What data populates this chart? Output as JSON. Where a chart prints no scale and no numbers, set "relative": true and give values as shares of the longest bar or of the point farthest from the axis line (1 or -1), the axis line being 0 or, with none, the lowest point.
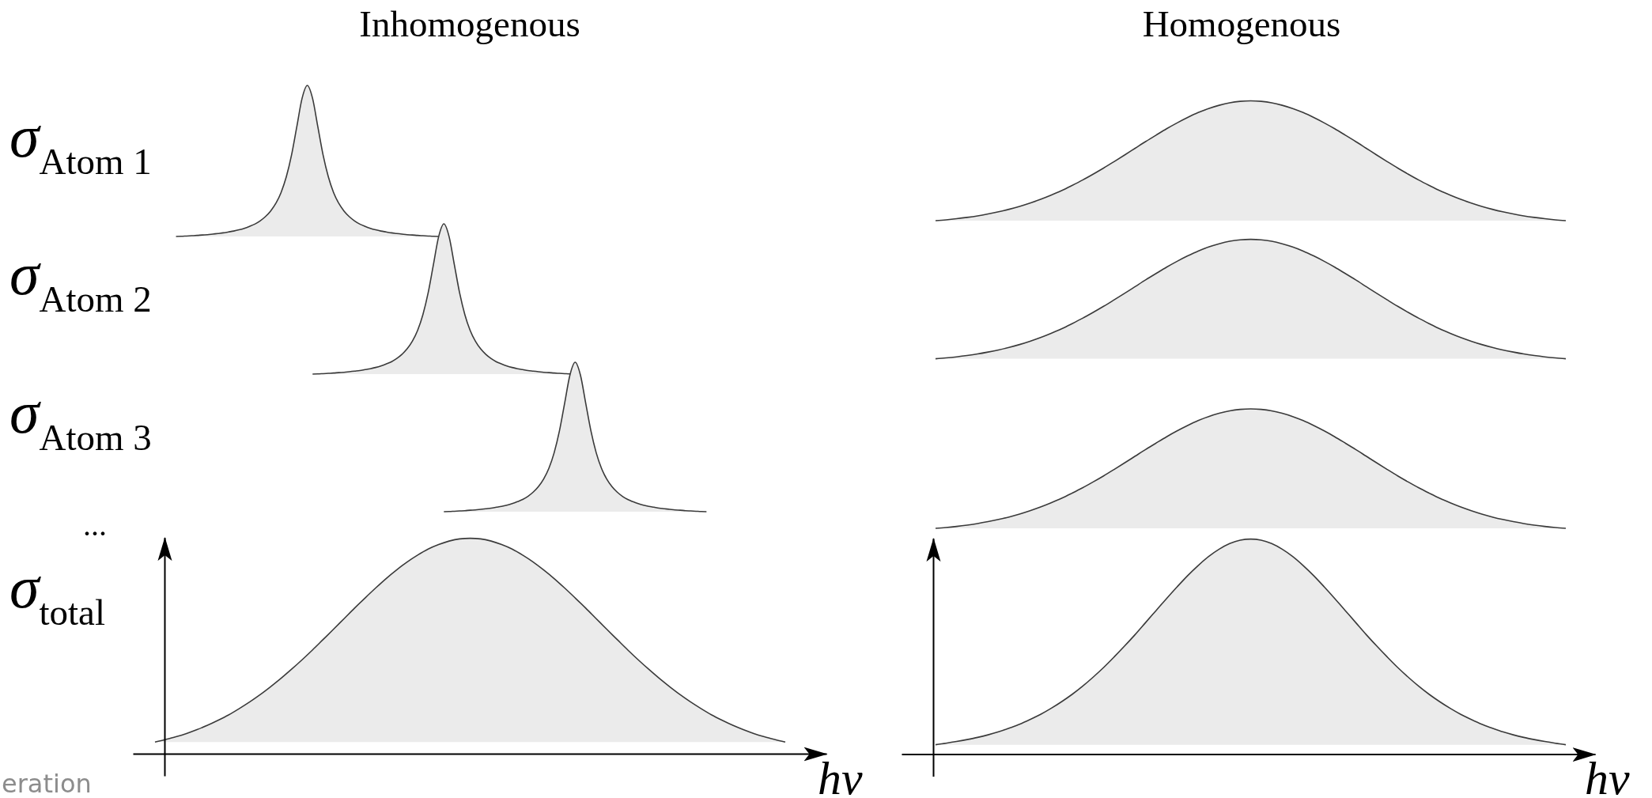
{
  "chart_data": [
    {
      "type": "area",
      "relative": true,
      "title": "Inhomogenous",
      "ylabel": "σ$_{Atom 1}$",
      "color": "#ebebeb",
      "categories": [
        null,
        null,
        null,
        null,
        null,
        null,
        null,
        null,
        null,
        null,
        null,
        null,
        null,
        null,
        null,
        null,
        null,
        null,
        null,
        null,
        null,
        null,
        null,
        null,
        null,
        null,
        null,
        null,
        null,
        null,
        null,
        null,
        null,
        null,
        null,
        null,
        null,
        null,
        null,
        null,
        null,
        null,
        null,
        null,
        null,
        null,
        null,
        null,
        null,
        null,
        null,
        null,
        null,
        null,
        null,
        null,
        null,
        null,
        null,
        null,
        null,
        null,
        null,
        null,
        null,
        null,
        null,
        null,
        null,
        null,
        null,
        null,
        null,
        null,
        null,
        null,
        null,
        null,
        null,
        null,
        null,
        null,
        null,
        null,
        null,
        null,
        null,
        null,
        null,
        null,
        null,
        null,
        null,
        null,
        null,
        null,
        null,
        null,
        null,
        null,
        null,
        null,
        null,
        null,
        null,
        null,
        null,
        null,
        null,
        null,
        null,
        null,
        null,
        null,
        null,
        null,
        null,
        null,
        null,
        null,
        null
      ],
      "values": [
        null,
        null,
        null,
        null,
        0,
        0.001,
        0.003,
        0.005,
        0.007,
        0.01,
        0.012,
        0.016,
        0.02,
        0.024,
        0.03,
        0.036,
        0.044,
        0.054,
        0.067,
        0.082,
        0.103,
        0.131,
        0.168,
        0.219,
        0.291,
        0.395,
        0.54,
        0.727,
        0.914,
        1,
        0.914,
        0.727,
        0.54,
        0.395,
        0.291,
        0.219,
        0.168,
        0.131,
        0.103,
        0.082,
        0.067,
        0.054,
        0.044,
        0.036,
        0.03,
        0.024,
        0.02,
        0.016,
        0.012,
        0.01,
        0.007,
        0.005,
        0.003,
        0.001,
        0,
        null,
        null,
        null,
        null,
        null,
        null,
        null,
        null,
        null,
        null,
        null,
        null,
        null,
        null,
        null,
        null,
        null,
        null,
        null,
        null,
        null,
        null,
        null,
        null,
        null,
        null,
        null,
        null,
        null,
        null,
        null,
        null,
        null,
        null,
        null,
        null,
        null,
        null,
        null,
        null,
        null,
        null,
        null,
        null,
        null,
        null,
        null,
        null,
        null,
        null,
        null,
        null,
        null,
        null,
        null,
        null,
        null,
        null,
        null,
        null,
        null,
        null,
        null,
        null,
        null,
        null
      ]
    },
    {
      "type": "area",
      "relative": true,
      "title": "Homogenous",
      "color": "#ebebeb",
      "categories": [
        null,
        null,
        null,
        null,
        null,
        null,
        null,
        null,
        null,
        null,
        null,
        null,
        null,
        null,
        null,
        null,
        null,
        null,
        null,
        null,
        null,
        null,
        null,
        null,
        null,
        null,
        null,
        null,
        null,
        null,
        null,
        null,
        null,
        null,
        null,
        null,
        null,
        null,
        null,
        null,
        null,
        null,
        null,
        null,
        null,
        null,
        null,
        null,
        null,
        null,
        null,
        null,
        null,
        null,
        null,
        null,
        null,
        null,
        null,
        null,
        null
      ],
      "values": [
        0,
        0.007,
        0.016,
        0.027,
        0.04,
        0.056,
        0.074,
        0.095,
        0.119,
        0.147,
        0.178,
        0.213,
        0.251,
        0.294,
        0.339,
        0.388,
        0.439,
        0.493,
        0.548,
        0.604,
        0.66,
        0.714,
        0.767,
        0.816,
        0.861,
        0.902,
        0.936,
        0.963,
        0.984,
        0.996,
        1,
        0.996,
        0.984,
        0.963,
        0.936,
        0.902,
        0.861,
        0.816,
        0.767,
        0.714,
        0.66,
        0.604,
        0.548,
        0.493,
        0.439,
        0.388,
        0.339,
        0.294,
        0.251,
        0.213,
        0.178,
        0.147,
        0.119,
        0.095,
        0.074,
        0.056,
        0.04,
        0.027,
        0.016,
        0.007,
        0
      ]
    },
    {
      "type": "area",
      "relative": true,
      "ylabel": "σ$_{Atom 2}$",
      "color": "#ebebeb",
      "categories": [
        null,
        null,
        null,
        null,
        null,
        null,
        null,
        null,
        null,
        null,
        null,
        null,
        null,
        null,
        null,
        null,
        null,
        null,
        null,
        null,
        null,
        null,
        null,
        null,
        null,
        null,
        null,
        null,
        null,
        null,
        null,
        null,
        null,
        null,
        null,
        null,
        null,
        null,
        null,
        null,
        null,
        null,
        null,
        null,
        null,
        null,
        null,
        null,
        null,
        null,
        null,
        null,
        null,
        null,
        null,
        null,
        null,
        null,
        null,
        null,
        null,
        null,
        null,
        null,
        null,
        null,
        null,
        null,
        null,
        null,
        null,
        null,
        null,
        null,
        null,
        null,
        null,
        null,
        null,
        null,
        null,
        null,
        null,
        null,
        null,
        null,
        null,
        null,
        null,
        null,
        null,
        null,
        null,
        null,
        null,
        null,
        null,
        null,
        null,
        null,
        null,
        null,
        null,
        null,
        null,
        null,
        null,
        null,
        null,
        null,
        null,
        null,
        null,
        null,
        null,
        null,
        null,
        null,
        null,
        null,
        null
      ],
      "values": [
        null,
        null,
        null,
        null,
        null,
        null,
        null,
        null,
        null,
        null,
        null,
        null,
        null,
        null,
        null,
        null,
        null,
        null,
        null,
        null,
        null,
        null,
        null,
        null,
        null,
        null,
        null,
        null,
        null,
        null,
        0,
        0.001,
        0.003,
        0.005,
        0.007,
        0.01,
        0.012,
        0.016,
        0.02,
        0.024,
        0.03,
        0.036,
        0.044,
        0.054,
        0.067,
        0.082,
        0.103,
        0.131,
        0.168,
        0.219,
        0.291,
        0.395,
        0.54,
        0.727,
        0.914,
        1,
        0.914,
        0.727,
        0.54,
        0.395,
        0.291,
        0.219,
        0.168,
        0.131,
        0.103,
        0.082,
        0.067,
        0.054,
        0.044,
        0.036,
        0.03,
        0.024,
        0.02,
        0.016,
        0.012,
        0.01,
        0.007,
        0.005,
        0.003,
        0.001,
        0,
        null,
        null,
        null,
        null,
        null,
        null,
        null,
        null,
        null,
        null,
        null,
        null,
        null,
        null,
        null,
        null,
        null,
        null,
        null,
        null,
        null,
        null,
        null,
        null,
        null,
        null,
        null,
        null,
        null,
        null,
        null,
        null,
        null,
        null,
        null,
        null,
        null,
        null,
        null,
        null
      ]
    },
    {
      "type": "area",
      "relative": true,
      "color": "#ebebeb",
      "categories": [
        null,
        null,
        null,
        null,
        null,
        null,
        null,
        null,
        null,
        null,
        null,
        null,
        null,
        null,
        null,
        null,
        null,
        null,
        null,
        null,
        null,
        null,
        null,
        null,
        null,
        null,
        null,
        null,
        null,
        null,
        null,
        null,
        null,
        null,
        null,
        null,
        null,
        null,
        null,
        null,
        null,
        null,
        null,
        null,
        null,
        null,
        null,
        null,
        null,
        null,
        null,
        null,
        null,
        null,
        null,
        null,
        null,
        null,
        null,
        null,
        null
      ],
      "values": [
        0,
        0.007,
        0.016,
        0.027,
        0.04,
        0.056,
        0.074,
        0.095,
        0.119,
        0.147,
        0.178,
        0.213,
        0.251,
        0.294,
        0.339,
        0.388,
        0.439,
        0.493,
        0.548,
        0.604,
        0.66,
        0.714,
        0.767,
        0.816,
        0.861,
        0.902,
        0.936,
        0.963,
        0.984,
        0.996,
        1,
        0.996,
        0.984,
        0.963,
        0.936,
        0.902,
        0.861,
        0.816,
        0.767,
        0.714,
        0.66,
        0.604,
        0.548,
        0.493,
        0.439,
        0.388,
        0.339,
        0.294,
        0.251,
        0.213,
        0.178,
        0.147,
        0.119,
        0.095,
        0.074,
        0.056,
        0.04,
        0.027,
        0.016,
        0.007,
        0
      ]
    },
    {
      "type": "area",
      "relative": true,
      "ylabel": "σ$_{Atom 3}$",
      "color": "#ebebeb",
      "categories": [
        null,
        null,
        null,
        null,
        null,
        null,
        null,
        null,
        null,
        null,
        null,
        null,
        null,
        null,
        null,
        null,
        null,
        null,
        null,
        null,
        null,
        null,
        null,
        null,
        null,
        null,
        null,
        null,
        null,
        null,
        null,
        null,
        null,
        null,
        null,
        null,
        null,
        null,
        null,
        null,
        null,
        null,
        null,
        null,
        null,
        null,
        null,
        null,
        null,
        null,
        null,
        null,
        null,
        null,
        null,
        null,
        null,
        null,
        null,
        null,
        null,
        null,
        null,
        null,
        null,
        null,
        null,
        null,
        null,
        null,
        null,
        null,
        null,
        null,
        null,
        null,
        null,
        null,
        null,
        null,
        null,
        null,
        null,
        null,
        null,
        null,
        null,
        null,
        null,
        null,
        null,
        null,
        null,
        null,
        null,
        null,
        null,
        null,
        null,
        null,
        null,
        null,
        null,
        null,
        null,
        null,
        null,
        null,
        null,
        null,
        null,
        null,
        null,
        null,
        null,
        null,
        null,
        null,
        null,
        null,
        null
      ],
      "values": [
        null,
        null,
        null,
        null,
        null,
        null,
        null,
        null,
        null,
        null,
        null,
        null,
        null,
        null,
        null,
        null,
        null,
        null,
        null,
        null,
        null,
        null,
        null,
        null,
        null,
        null,
        null,
        null,
        null,
        null,
        null,
        null,
        null,
        null,
        null,
        null,
        null,
        null,
        null,
        null,
        null,
        null,
        null,
        null,
        null,
        null,
        null,
        null,
        null,
        null,
        null,
        null,
        null,
        null,
        null,
        0,
        0.001,
        0.003,
        0.005,
        0.007,
        0.01,
        0.012,
        0.016,
        0.02,
        0.024,
        0.03,
        0.036,
        0.044,
        0.054,
        0.067,
        0.082,
        0.103,
        0.131,
        0.168,
        0.219,
        0.291,
        0.395,
        0.54,
        0.727,
        0.914,
        1,
        0.914,
        0.727,
        0.54,
        0.395,
        0.291,
        0.219,
        0.168,
        0.131,
        0.103,
        0.082,
        0.067,
        0.054,
        0.044,
        0.036,
        0.03,
        0.024,
        0.02,
        0.016,
        0.012,
        0.01,
        0.007,
        0.005,
        0.003,
        0.001,
        0,
        null,
        null,
        null,
        null,
        null,
        null,
        null,
        null,
        null,
        null,
        null,
        null,
        null,
        null,
        null
      ]
    },
    {
      "type": "area",
      "relative": true,
      "color": "#ebebeb",
      "categories": [
        null,
        null,
        null,
        null,
        null,
        null,
        null,
        null,
        null,
        null,
        null,
        null,
        null,
        null,
        null,
        null,
        null,
        null,
        null,
        null,
        null,
        null,
        null,
        null,
        null,
        null,
        null,
        null,
        null,
        null,
        null,
        null,
        null,
        null,
        null,
        null,
        null,
        null,
        null,
        null,
        null,
        null,
        null,
        null,
        null,
        null,
        null,
        null,
        null,
        null,
        null,
        null,
        null,
        null,
        null,
        null,
        null,
        null,
        null,
        null,
        null
      ],
      "values": [
        0,
        0.007,
        0.016,
        0.027,
        0.04,
        0.056,
        0.074,
        0.095,
        0.119,
        0.147,
        0.178,
        0.213,
        0.251,
        0.294,
        0.339,
        0.388,
        0.439,
        0.493,
        0.548,
        0.604,
        0.66,
        0.714,
        0.767,
        0.816,
        0.861,
        0.902,
        0.936,
        0.963,
        0.984,
        0.996,
        1,
        0.996,
        0.984,
        0.963,
        0.936,
        0.902,
        0.861,
        0.816,
        0.767,
        0.714,
        0.66,
        0.604,
        0.548,
        0.493,
        0.439,
        0.388,
        0.339,
        0.294,
        0.251,
        0.213,
        0.178,
        0.147,
        0.119,
        0.095,
        0.074,
        0.056,
        0.04,
        0.027,
        0.016,
        0.007,
        0
      ]
    },
    {
      "type": "area",
      "relative": true,
      "ylabel": "σ$_{total}$",
      "xlabel": "hν",
      "color": "#ebebeb",
      "annotations": [
        "...",
        "eration"
      ],
      "categories": [
        null,
        null,
        null,
        null,
        null,
        null,
        null,
        null,
        null,
        null,
        null,
        null,
        null,
        null,
        null,
        null,
        null,
        null,
        null,
        null,
        null,
        null,
        null,
        null,
        null,
        null,
        null,
        null,
        null,
        null,
        null,
        null,
        null,
        null,
        null,
        null,
        null,
        null,
        null,
        null,
        null,
        null,
        null,
        null,
        null,
        null,
        null,
        null,
        null,
        null,
        null,
        null,
        null,
        null,
        null,
        null,
        null,
        null,
        null,
        null,
        null
      ],
      "values": [
        0.054,
        0.066,
        0.079,
        0.094,
        0.112,
        0.132,
        0.155,
        0.18,
        0.209,
        0.24,
        0.274,
        0.311,
        0.35,
        0.392,
        0.436,
        0.482,
        0.53,
        0.578,
        0.627,
        0.676,
        0.723,
        0.769,
        0.813,
        0.853,
        0.89,
        0.922,
        0.95,
        0.971,
        0.987,
        0.997,
        1,
        0.997,
        0.987,
        0.971,
        0.95,
        0.922,
        0.89,
        0.853,
        0.813,
        0.769,
        0.723,
        0.676,
        0.627,
        0.578,
        0.53,
        0.482,
        0.436,
        0.392,
        0.35,
        0.311,
        0.274,
        0.24,
        0.209,
        0.18,
        0.155,
        0.132,
        0.112,
        0.094,
        0.079,
        0.066,
        0.054
      ]
    },
    {
      "type": "area",
      "relative": true,
      "xlabel": "hν",
      "color": "#ebebeb",
      "categories": [
        null,
        null,
        null,
        null,
        null,
        null,
        null,
        null,
        null,
        null,
        null,
        null,
        null,
        null,
        null,
        null,
        null,
        null,
        null,
        null,
        null,
        null,
        null,
        null,
        null,
        null,
        null,
        null,
        null,
        null,
        null,
        null,
        null,
        null,
        null,
        null,
        null,
        null,
        null,
        null,
        null,
        null,
        null,
        null,
        null,
        null,
        null,
        null,
        null,
        null,
        null,
        null,
        null,
        null,
        null,
        null,
        null,
        null,
        null,
        null,
        null
      ],
      "values": [
        0.044,
        0.051,
        0.059,
        0.068,
        0.078,
        0.09,
        0.104,
        0.121,
        0.139,
        0.161,
        0.185,
        0.213,
        0.244,
        0.278,
        0.316,
        0.358,
        0.403,
        0.452,
        0.503,
        0.556,
        0.612,
        0.668,
        0.724,
        0.778,
        0.83,
        0.877,
        0.919,
        0.953,
        0.979,
        0.995,
        1,
        0.995,
        0.979,
        0.953,
        0.919,
        0.877,
        0.83,
        0.778,
        0.724,
        0.668,
        0.612,
        0.556,
        0.503,
        0.452,
        0.403,
        0.358,
        0.316,
        0.278,
        0.244,
        0.213,
        0.185,
        0.161,
        0.139,
        0.121,
        0.104,
        0.09,
        0.078,
        0.068,
        0.059,
        0.051,
        0.044
      ]
    }
  ]
}
